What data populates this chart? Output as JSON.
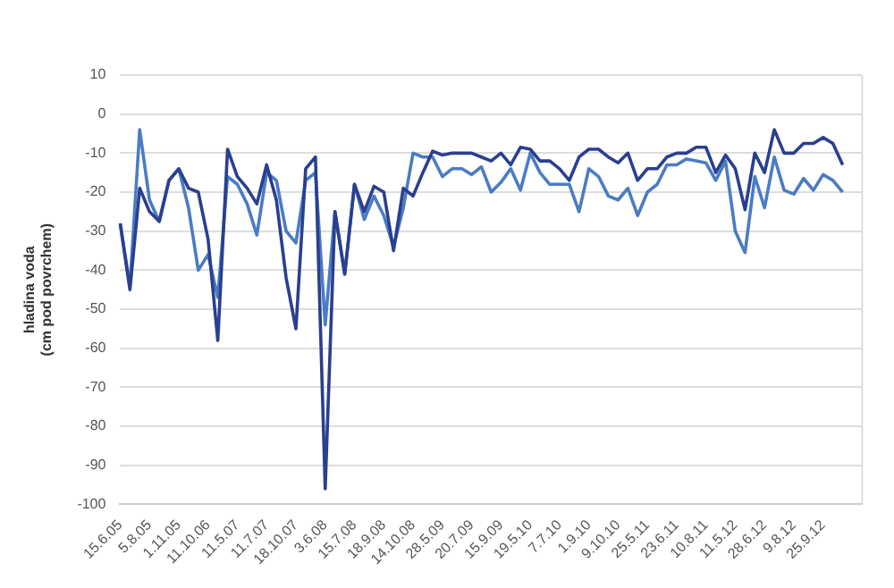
{
  "chart_data": {
    "type": "line",
    "ylabel": "hladina voda\n(cm pod povrchem)",
    "categories": [
      "15.6.05",
      null,
      null,
      "5.8.05",
      null,
      null,
      "1.11.05",
      null,
      null,
      "11.10.06",
      null,
      null,
      "11.5.07",
      null,
      null,
      "11.7.07",
      null,
      null,
      "18.10.07",
      null,
      null,
      "3.6.08",
      null,
      null,
      "15.7.08",
      null,
      null,
      "18.9.08",
      null,
      null,
      "14.10.08",
      null,
      null,
      "28.5.09",
      null,
      null,
      "20.7.09",
      null,
      null,
      "15.9.09",
      null,
      null,
      "19.5.10",
      null,
      null,
      "7.7.10",
      null,
      null,
      "1.9.10",
      null,
      null,
      "9.10.10",
      null,
      null,
      "25.5.11",
      null,
      null,
      "23.6.11",
      null,
      null,
      "10.8.11",
      null,
      null,
      "11.5.12",
      null,
      null,
      "28.6.12",
      null,
      null,
      "9.8.12",
      null,
      null,
      "25.9.12",
      null,
      null,
      null,
      null
    ],
    "series": [
      {
        "color": "#2a3f8f",
        "values": [
          -28,
          -45,
          -19,
          -25,
          -27.5,
          -17,
          -14,
          -19,
          -20,
          -32,
          -58,
          -9,
          -16,
          -19,
          -23,
          -13,
          -22,
          -42,
          -55,
          -14,
          -11,
          -96,
          -25,
          -41,
          -18,
          -25,
          -18.5,
          -20,
          -35,
          -19,
          -21,
          -15,
          -9.5,
          -10.5,
          -10,
          -10,
          -10,
          -11,
          -12,
          -10,
          -13,
          -8.5,
          -9,
          -12,
          -12,
          -14,
          -17,
          -11,
          -9,
          -9,
          -11,
          -12.5,
          -10,
          -17,
          -14,
          -14,
          -11,
          -10,
          -10,
          -8.5,
          -8.5,
          -15,
          -10.5,
          -14,
          -24.5,
          -10,
          -15,
          -4,
          -10,
          -10,
          -7.5,
          -7.5,
          -6,
          -7.5,
          -13,
          null,
          null
        ]
      },
      {
        "color": "#4a7cc4",
        "values": [
          -28,
          -44,
          -4,
          -22,
          -27.5,
          -17,
          -14,
          -24,
          -40,
          -36,
          -47,
          -16,
          -18,
          -23,
          -31,
          -15,
          -17,
          -30,
          -33,
          -17,
          -15,
          -54,
          -25,
          -41,
          -18,
          -27,
          -21,
          -26,
          -34,
          -24,
          -10,
          -11,
          -11,
          -16,
          -14,
          -14,
          -15.5,
          -13.5,
          -20,
          -17.5,
          -14,
          -19.5,
          -10,
          -15,
          -18,
          -18,
          -18,
          -25,
          -14,
          -16,
          -21,
          -22,
          -19,
          -26,
          -20,
          -18,
          -13,
          -13,
          -11.5,
          -12,
          -12.5,
          -17,
          -12,
          -30,
          -35.5,
          -16,
          -24,
          -11,
          -19.5,
          -20.5,
          -16.5,
          -19.5,
          -15.5,
          -17,
          -20,
          null,
          null
        ]
      }
    ],
    "ylim": [
      -100,
      10
    ],
    "yticks": [
      -100,
      -90,
      -80,
      -70,
      -60,
      -50,
      -40,
      -30,
      -20,
      -10,
      0,
      10
    ],
    "grid": "y",
    "legend": false,
    "line_style": "solid",
    "marker": "none"
  }
}
